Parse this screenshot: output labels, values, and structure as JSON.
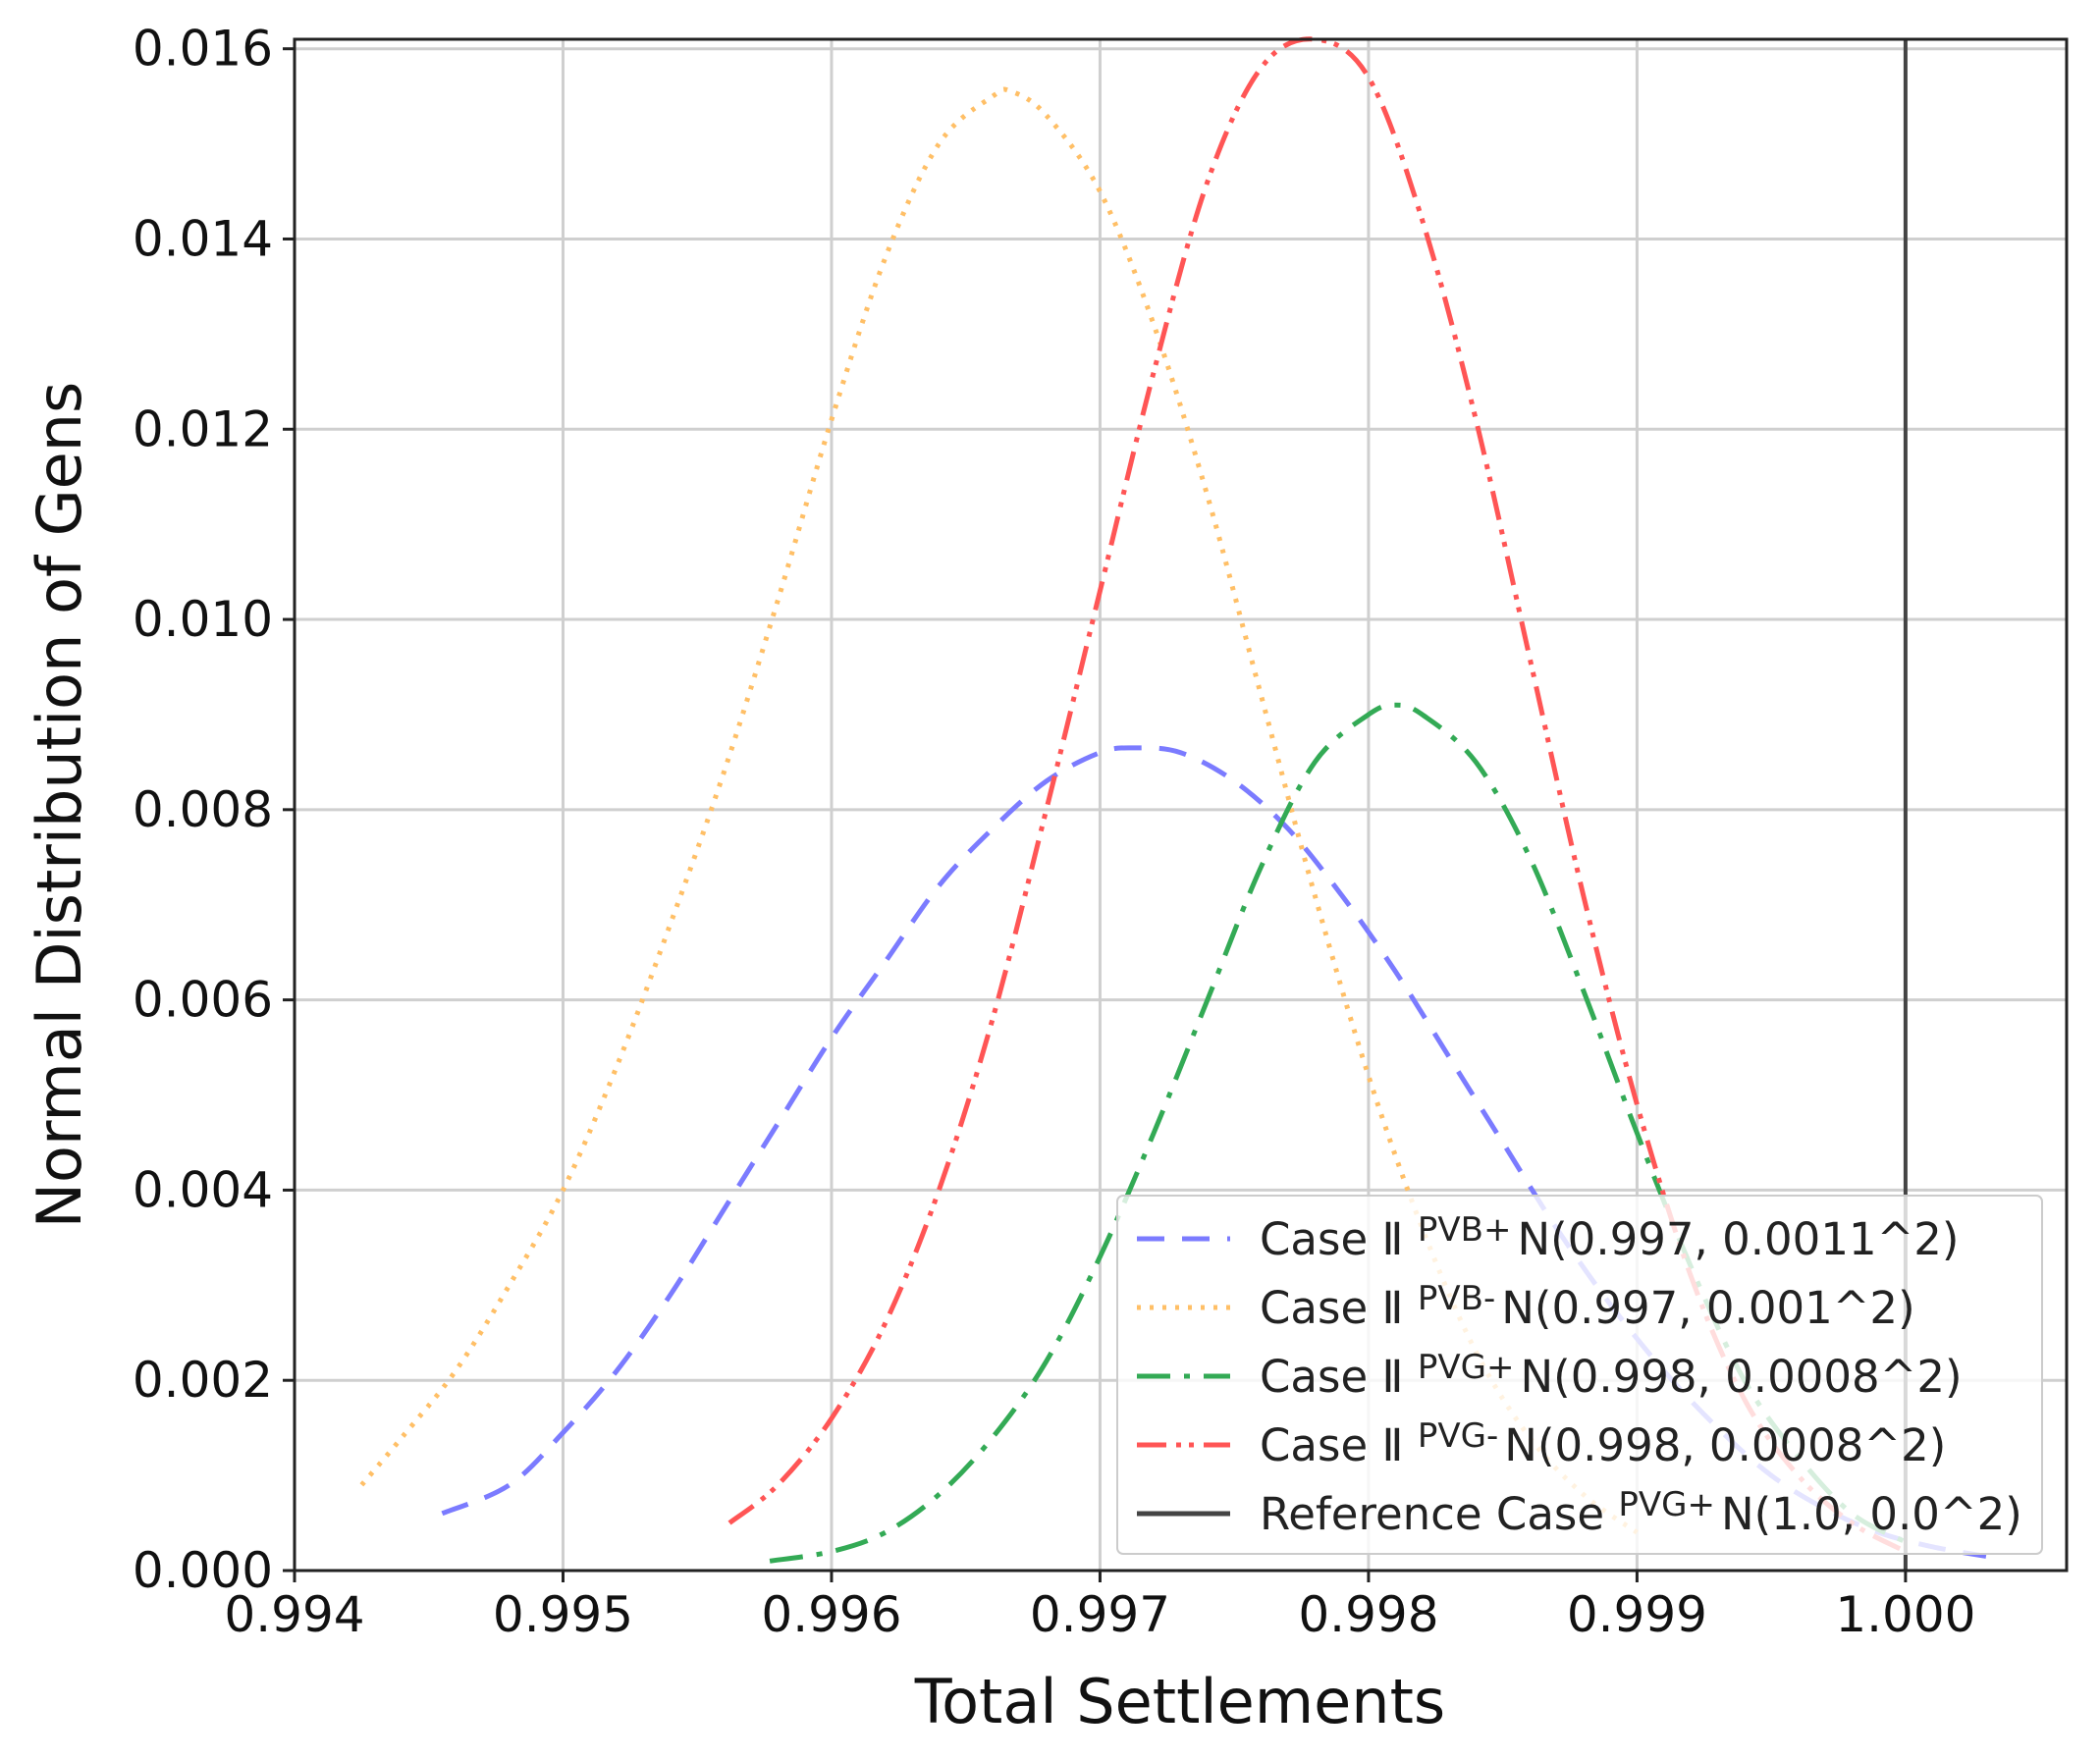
{
  "chart_data": {
    "type": "line",
    "title": "",
    "xlabel": "Total Settlements",
    "ylabel": "Normal Distribution of Gens",
    "xlim": [
      0.994,
      1.0006
    ],
    "ylim": [
      0,
      0.0161
    ],
    "grid": true,
    "legend_position": "lower-right",
    "x_ticks": [
      "0.994",
      "0.995",
      "0.996",
      "0.997",
      "0.998",
      "0.999",
      "1.000"
    ],
    "y_ticks": [
      "0.000",
      "0.002",
      "0.004",
      "0.006",
      "0.008",
      "0.010",
      "0.012",
      "0.014",
      "0.016"
    ],
    "series": [
      {
        "label": "Case Ⅱ",
        "sup": "PVB+",
        "dist": "N(0.997, 0.0011^2)",
        "color": "#7b7bff",
        "dash": "28 18",
        "x": [
          0.99455,
          0.9948,
          0.995,
          0.9952,
          0.9954,
          0.9956,
          0.9958,
          0.996,
          0.9962,
          0.9964,
          0.9966,
          0.9968,
          0.997,
          0.99713,
          0.9973,
          0.9975,
          0.9977,
          0.9979,
          0.9981,
          0.9983,
          0.9985,
          0.9987,
          0.9989,
          0.9991,
          0.9993,
          0.9995,
          0.9997,
          0.9999,
          1.0001,
          1.0003
        ],
        "y": [
          0.0006,
          0.0009,
          0.00145,
          0.0021,
          0.0029,
          0.0038,
          0.0047,
          0.0056,
          0.0064,
          0.0072,
          0.0078,
          0.0083,
          0.0086,
          0.00865,
          0.0086,
          0.0083,
          0.0078,
          0.0071,
          0.0063,
          0.0054,
          0.0045,
          0.0036,
          0.0028,
          0.0021,
          0.0015,
          0.001,
          0.00065,
          0.0004,
          0.00025,
          0.00015
        ]
      },
      {
        "label": "Case Ⅱ",
        "sup": "PVB-",
        "dist": "N(0.997, 0.001^2)",
        "color": "#ffbf66",
        "dash": "4 9",
        "x": [
          0.99425,
          0.9944,
          0.9946,
          0.9948,
          0.995,
          0.9952,
          0.9954,
          0.9956,
          0.9958,
          0.996,
          0.9962,
          0.9964,
          0.9966,
          0.99667,
          0.9968,
          0.997,
          0.9972,
          0.9974,
          0.9976,
          0.9978,
          0.998,
          0.9982,
          0.9984,
          0.9986,
          0.9988,
          0.999
        ],
        "y": [
          0.0009,
          0.0014,
          0.0021,
          0.003,
          0.004,
          0.0053,
          0.0068,
          0.0084,
          0.0102,
          0.0121,
          0.0138,
          0.015,
          0.0155,
          0.01555,
          0.0153,
          0.0145,
          0.0131,
          0.0113,
          0.0092,
          0.0071,
          0.0052,
          0.0036,
          0.0023,
          0.0014,
          0.0008,
          0.0004
        ]
      },
      {
        "label": "Case Ⅱ",
        "sup": "PVG+",
        "dist": "N(0.998, 0.0008^2)",
        "color": "#33aa55",
        "dash": "34 14 6 14",
        "x": [
          0.99577,
          0.996,
          0.9962,
          0.9964,
          0.9966,
          0.9968,
          0.997,
          0.9972,
          0.9974,
          0.9976,
          0.9978,
          0.998,
          0.9981,
          0.9982,
          0.9984,
          0.9986,
          0.9988,
          0.999,
          0.9992,
          0.9994,
          0.9996,
          0.9998,
          1.0
        ],
        "y": [
          0.0001,
          0.0002,
          0.0004,
          0.0008,
          0.0014,
          0.0022,
          0.0033,
          0.0046,
          0.006,
          0.0074,
          0.0085,
          0.009,
          0.0091,
          0.009,
          0.0085,
          0.0075,
          0.0061,
          0.0046,
          0.0032,
          0.002,
          0.0012,
          0.0006,
          0.0003
        ]
      },
      {
        "label": "Case Ⅱ",
        "sup": "PVG-",
        "dist": "N(0.998, 0.0008^2)",
        "color": "#ff5555",
        "dash": "30 10 5 8 5 10",
        "x": [
          0.99562,
          0.9958,
          0.996,
          0.9962,
          0.9964,
          0.9966,
          0.9968,
          0.997,
          0.9972,
          0.9974,
          0.9976,
          0.9978,
          0.998,
          0.9982,
          0.9984,
          0.9986,
          0.9988,
          0.999,
          0.9992,
          0.9994,
          0.9996,
          0.9998,
          1.0
        ],
        "y": [
          0.0005,
          0.0009,
          0.0016,
          0.0026,
          0.004,
          0.0058,
          0.008,
          0.0103,
          0.0126,
          0.0146,
          0.0158,
          0.0161,
          0.0157,
          0.0142,
          0.0121,
          0.0096,
          0.0071,
          0.0049,
          0.0031,
          0.0018,
          0.001,
          0.0005,
          0.0002
        ]
      },
      {
        "label": "Reference Case",
        "sup": "PVG+",
        "dist": "N(1.0, 0.0^2)",
        "color": "#444444",
        "dash": "",
        "x": [
          1.0,
          1.0
        ],
        "y": [
          0,
          0.0161
        ]
      }
    ]
  }
}
